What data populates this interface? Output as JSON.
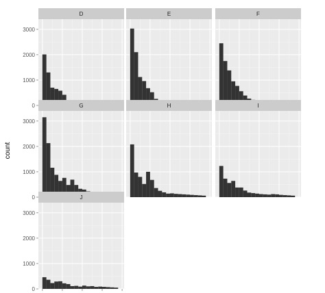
{
  "chart_data": {
    "type": "histogram",
    "layout": "facet_wrap",
    "ylabel": "count",
    "xlabel": "",
    "xlim": [
      -1000,
      20500
    ],
    "ylim": [
      0,
      3400
    ],
    "x_ticks": [
      0,
      5000,
      10000,
      15000,
      20000
    ],
    "y_ticks": [
      0,
      1000,
      2000,
      3000
    ],
    "bin_width": 1000,
    "bin_starts": [
      0,
      1000,
      2000,
      3000,
      4000,
      5000,
      6000,
      7000,
      8000,
      9000,
      10000,
      11000,
      12000,
      13000,
      14000,
      15000,
      16000,
      17000,
      18000
    ],
    "grid": true,
    "panel_background": "#ebebeb",
    "strip_background": "#cccccc",
    "bar_color": "#333333",
    "panels": [
      {
        "name": "D",
        "values": [
          2010,
          1300,
          700,
          650,
          580,
          420,
          180,
          140,
          110,
          90,
          80,
          70,
          60,
          50,
          55,
          40,
          35,
          30,
          25
        ]
      },
      {
        "name": "E",
        "values": [
          3030,
          2100,
          1120,
          960,
          680,
          520,
          260,
          200,
          160,
          130,
          110,
          90,
          80,
          70,
          60,
          50,
          45,
          40,
          30
        ]
      },
      {
        "name": "F",
        "values": [
          2450,
          1750,
          1380,
          950,
          770,
          560,
          390,
          270,
          220,
          200,
          160,
          140,
          120,
          110,
          100,
          90,
          80,
          70,
          60
        ]
      },
      {
        "name": "G",
        "values": [
          3150,
          2130,
          1160,
          880,
          640,
          760,
          480,
          690,
          480,
          330,
          300,
          230,
          200,
          160,
          150,
          140,
          120,
          100,
          90
        ]
      },
      {
        "name": "H",
        "values": [
          2080,
          970,
          800,
          520,
          1000,
          680,
          360,
          250,
          190,
          140,
          150,
          130,
          120,
          110,
          100,
          90,
          80,
          70,
          60
        ]
      },
      {
        "name": "I",
        "values": [
          1230,
          730,
          560,
          640,
          380,
          380,
          260,
          180,
          160,
          140,
          120,
          110,
          100,
          120,
          110,
          90,
          80,
          70,
          60
        ]
      },
      {
        "name": "J",
        "values": [
          460,
          360,
          230,
          290,
          300,
          220,
          190,
          110,
          120,
          90,
          130,
          100,
          110,
          80,
          90,
          80,
          70,
          60,
          50
        ]
      }
    ]
  }
}
